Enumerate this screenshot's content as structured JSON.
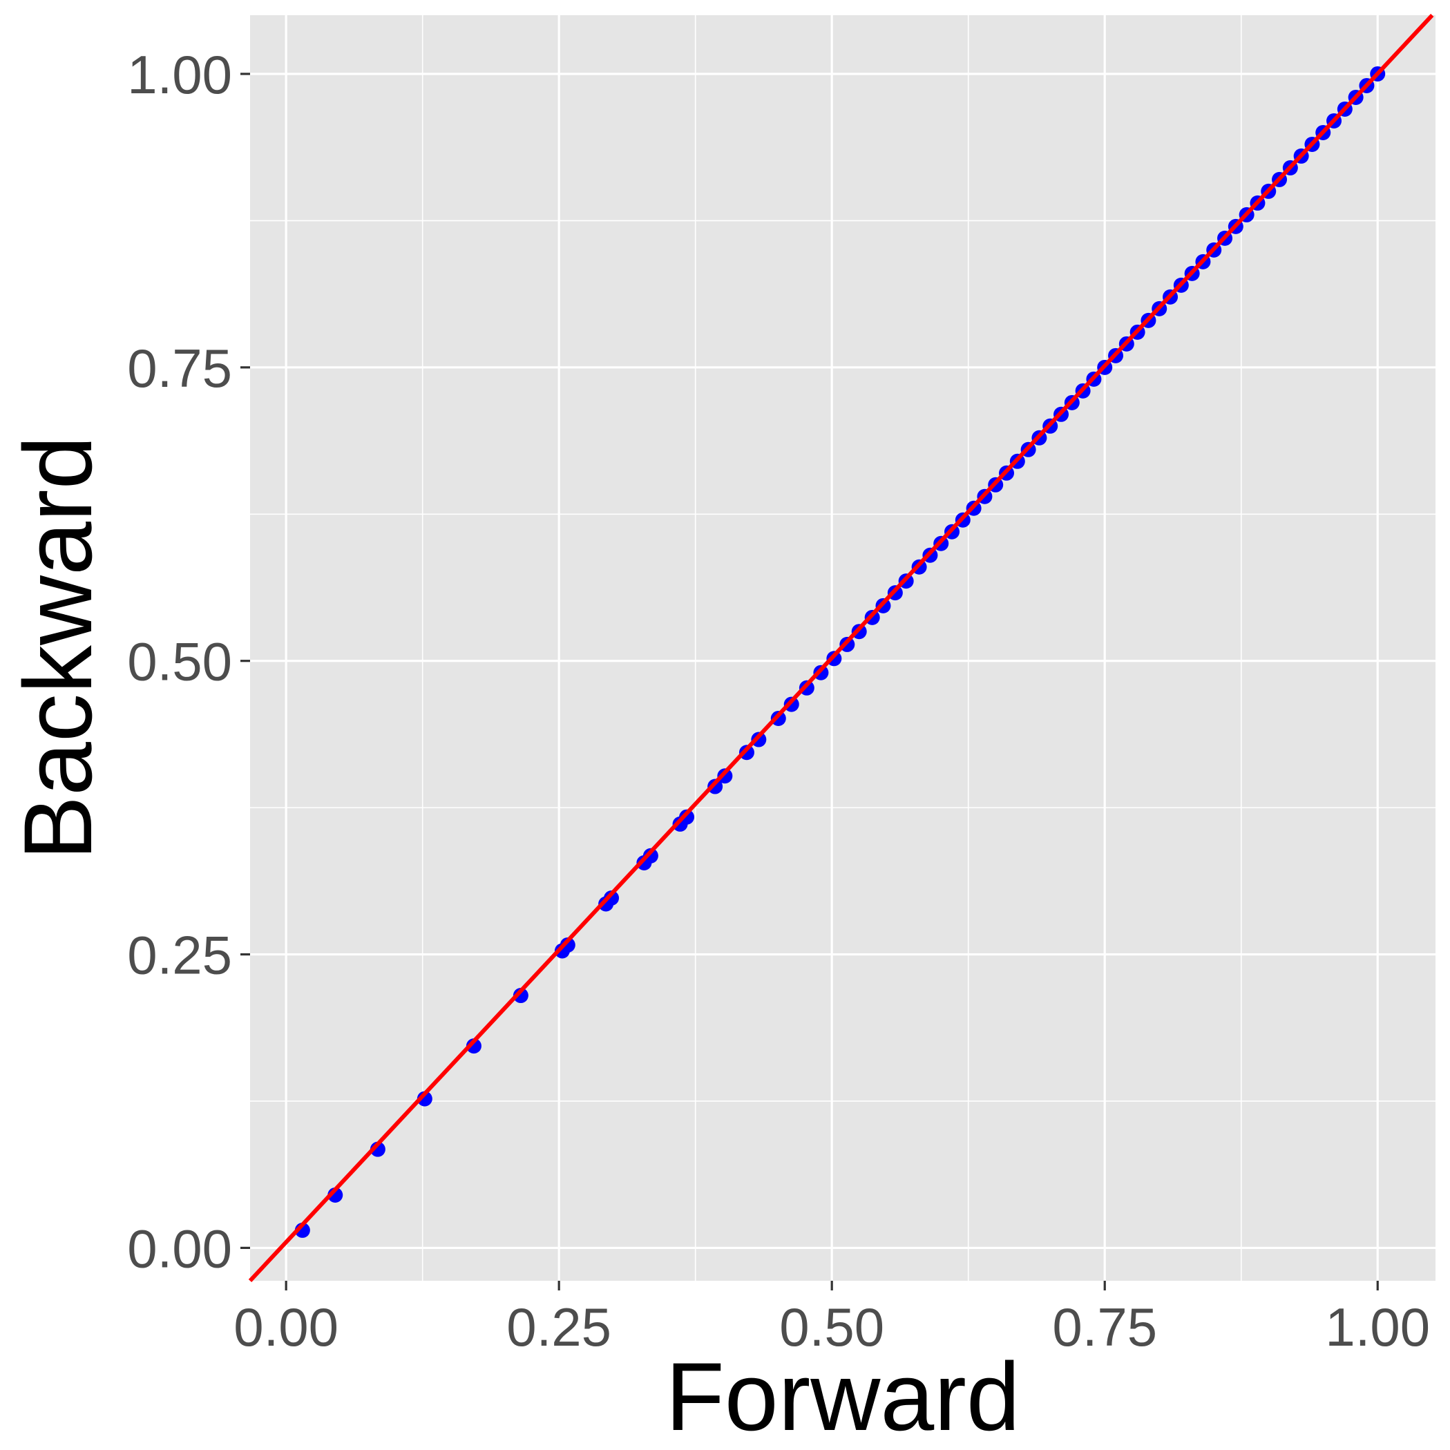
{
  "chart_data": {
    "type": "scatter",
    "title": "",
    "xlabel": "Forward",
    "ylabel": "Backward",
    "xlim": [
      -0.033,
      1.053
    ],
    "ylim": [
      -0.028,
      1.05
    ],
    "x_ticks": [
      0.0,
      0.25,
      0.5,
      0.75,
      1.0
    ],
    "x_tick_labels": [
      "0.00",
      "0.25",
      "0.50",
      "0.75",
      "1.00"
    ],
    "y_ticks": [
      0.0,
      0.25,
      0.5,
      0.75,
      1.0
    ],
    "y_tick_labels": [
      "0.00",
      "0.25",
      "0.50",
      "0.75",
      "1.00"
    ],
    "grid": true,
    "panel_background": "#e5e5e5",
    "grid_color": "#ffffff",
    "reference_line": {
      "type": "identity",
      "slope": 1,
      "intercept": 0,
      "color": "#ff0000"
    },
    "series": [
      {
        "color": "#0000ff",
        "points": [
          [
            0.015,
            0.015
          ],
          [
            0.045,
            0.045
          ],
          [
            0.084,
            0.084
          ],
          [
            0.127,
            0.127
          ],
          [
            0.172,
            0.172
          ],
          [
            0.215,
            0.215
          ],
          [
            0.253,
            0.253
          ],
          [
            0.258,
            0.258
          ],
          [
            0.293,
            0.293
          ],
          [
            0.298,
            0.298
          ],
          [
            0.328,
            0.328
          ],
          [
            0.334,
            0.334
          ],
          [
            0.361,
            0.361
          ],
          [
            0.367,
            0.367
          ],
          [
            0.393,
            0.393
          ],
          [
            0.402,
            0.402
          ],
          [
            0.422,
            0.422
          ],
          [
            0.433,
            0.433
          ],
          [
            0.451,
            0.451
          ],
          [
            0.463,
            0.463
          ],
          [
            0.477,
            0.477
          ],
          [
            0.49,
            0.49
          ],
          [
            0.502,
            0.502
          ],
          [
            0.514,
            0.514
          ],
          [
            0.525,
            0.525
          ],
          [
            0.537,
            0.537
          ],
          [
            0.547,
            0.547
          ],
          [
            0.558,
            0.558
          ],
          [
            0.568,
            0.568
          ],
          [
            0.58,
            0.58
          ],
          [
            0.59,
            0.59
          ],
          [
            0.6,
            0.6
          ],
          [
            0.61,
            0.61
          ],
          [
            0.62,
            0.62
          ],
          [
            0.63,
            0.63
          ],
          [
            0.64,
            0.64
          ],
          [
            0.65,
            0.65
          ],
          [
            0.66,
            0.66
          ],
          [
            0.67,
            0.67
          ],
          [
            0.68,
            0.68
          ],
          [
            0.69,
            0.69
          ],
          [
            0.7,
            0.7
          ],
          [
            0.71,
            0.71
          ],
          [
            0.72,
            0.72
          ],
          [
            0.73,
            0.73
          ],
          [
            0.74,
            0.74
          ],
          [
            0.75,
            0.75
          ],
          [
            0.76,
            0.76
          ],
          [
            0.77,
            0.77
          ],
          [
            0.78,
            0.78
          ],
          [
            0.79,
            0.79
          ],
          [
            0.8,
            0.8
          ],
          [
            0.81,
            0.81
          ],
          [
            0.82,
            0.82
          ],
          [
            0.83,
            0.83
          ],
          [
            0.84,
            0.84
          ],
          [
            0.85,
            0.85
          ],
          [
            0.86,
            0.86
          ],
          [
            0.87,
            0.87
          ],
          [
            0.88,
            0.88
          ],
          [
            0.89,
            0.89
          ],
          [
            0.9,
            0.9
          ],
          [
            0.91,
            0.91
          ],
          [
            0.92,
            0.92
          ],
          [
            0.93,
            0.93
          ],
          [
            0.94,
            0.94
          ],
          [
            0.95,
            0.95
          ],
          [
            0.96,
            0.96
          ],
          [
            0.97,
            0.97
          ],
          [
            0.98,
            0.98
          ],
          [
            0.99,
            0.99
          ],
          [
            1.0,
            1.0
          ]
        ]
      }
    ]
  }
}
